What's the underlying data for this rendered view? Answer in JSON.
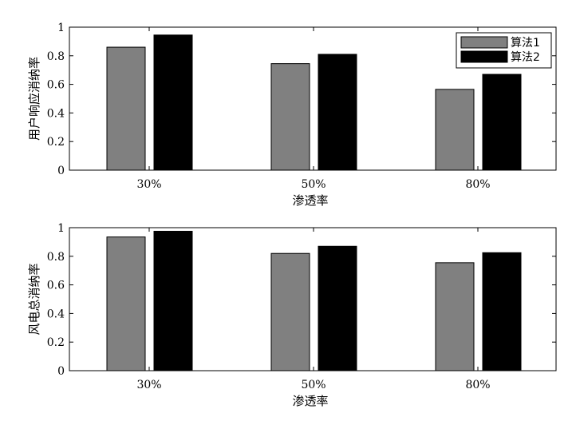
{
  "chart_data": [
    {
      "type": "bar",
      "categories": [
        "30%",
        "50%",
        "80%"
      ],
      "series": [
        {
          "name": "算法1",
          "values": [
            0.86,
            0.745,
            0.565
          ],
          "color": "#808080"
        },
        {
          "name": "算法2",
          "values": [
            0.945,
            0.81,
            0.67
          ],
          "color": "#000000"
        }
      ],
      "xlabel": "渗透率",
      "ylabel": "用户响应消纳率",
      "ylim": [
        0,
        1
      ],
      "yticks": [
        "0",
        "0.2",
        "0.4",
        "0.6",
        "0.8",
        "1"
      ],
      "legend": "top-right",
      "grid": false
    },
    {
      "type": "bar",
      "categories": [
        "30%",
        "50%",
        "80%"
      ],
      "series": [
        {
          "name": "算法1",
          "values": [
            0.935,
            0.82,
            0.755
          ],
          "color": "#808080"
        },
        {
          "name": "算法2",
          "values": [
            0.975,
            0.87,
            0.825
          ],
          "color": "#000000"
        }
      ],
      "xlabel": "渗透率",
      "ylabel": "风电总消纳率",
      "ylim": [
        0,
        1
      ],
      "yticks": [
        "0",
        "0.2",
        "0.4",
        "0.6",
        "0.8",
        "1"
      ],
      "legend": "none",
      "grid": false
    }
  ]
}
